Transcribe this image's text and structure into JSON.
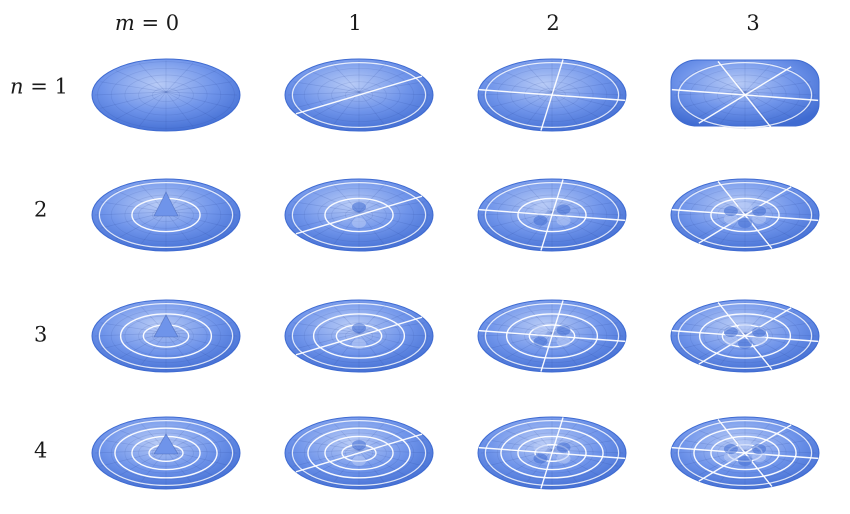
{
  "column_header": {
    "var": "m",
    "eq": " = ",
    "first": "0"
  },
  "row_header": {
    "var": "n",
    "eq": " = ",
    "first": "1"
  },
  "columns": [
    "0",
    "1",
    "2",
    "3"
  ],
  "rows": [
    "1",
    "2",
    "3",
    "4"
  ],
  "colors": {
    "surface_dark": "#3f6bd1",
    "surface_mid": "#6f94ea",
    "surface_light": "#b8cbf6",
    "nodal_line": "#ffffff",
    "mesh": "#2c4a9a"
  },
  "modes": [
    {
      "n": 1,
      "m": 0
    },
    {
      "n": 1,
      "m": 1
    },
    {
      "n": 1,
      "m": 2
    },
    {
      "n": 1,
      "m": 3
    },
    {
      "n": 2,
      "m": 0
    },
    {
      "n": 2,
      "m": 1
    },
    {
      "n": 2,
      "m": 2
    },
    {
      "n": 2,
      "m": 3
    },
    {
      "n": 3,
      "m": 0
    },
    {
      "n": 3,
      "m": 1
    },
    {
      "n": 3,
      "m": 2
    },
    {
      "n": 3,
      "m": 3
    },
    {
      "n": 4,
      "m": 0
    },
    {
      "n": 4,
      "m": 1
    },
    {
      "n": 4,
      "m": 2
    },
    {
      "n": 4,
      "m": 3
    }
  ]
}
